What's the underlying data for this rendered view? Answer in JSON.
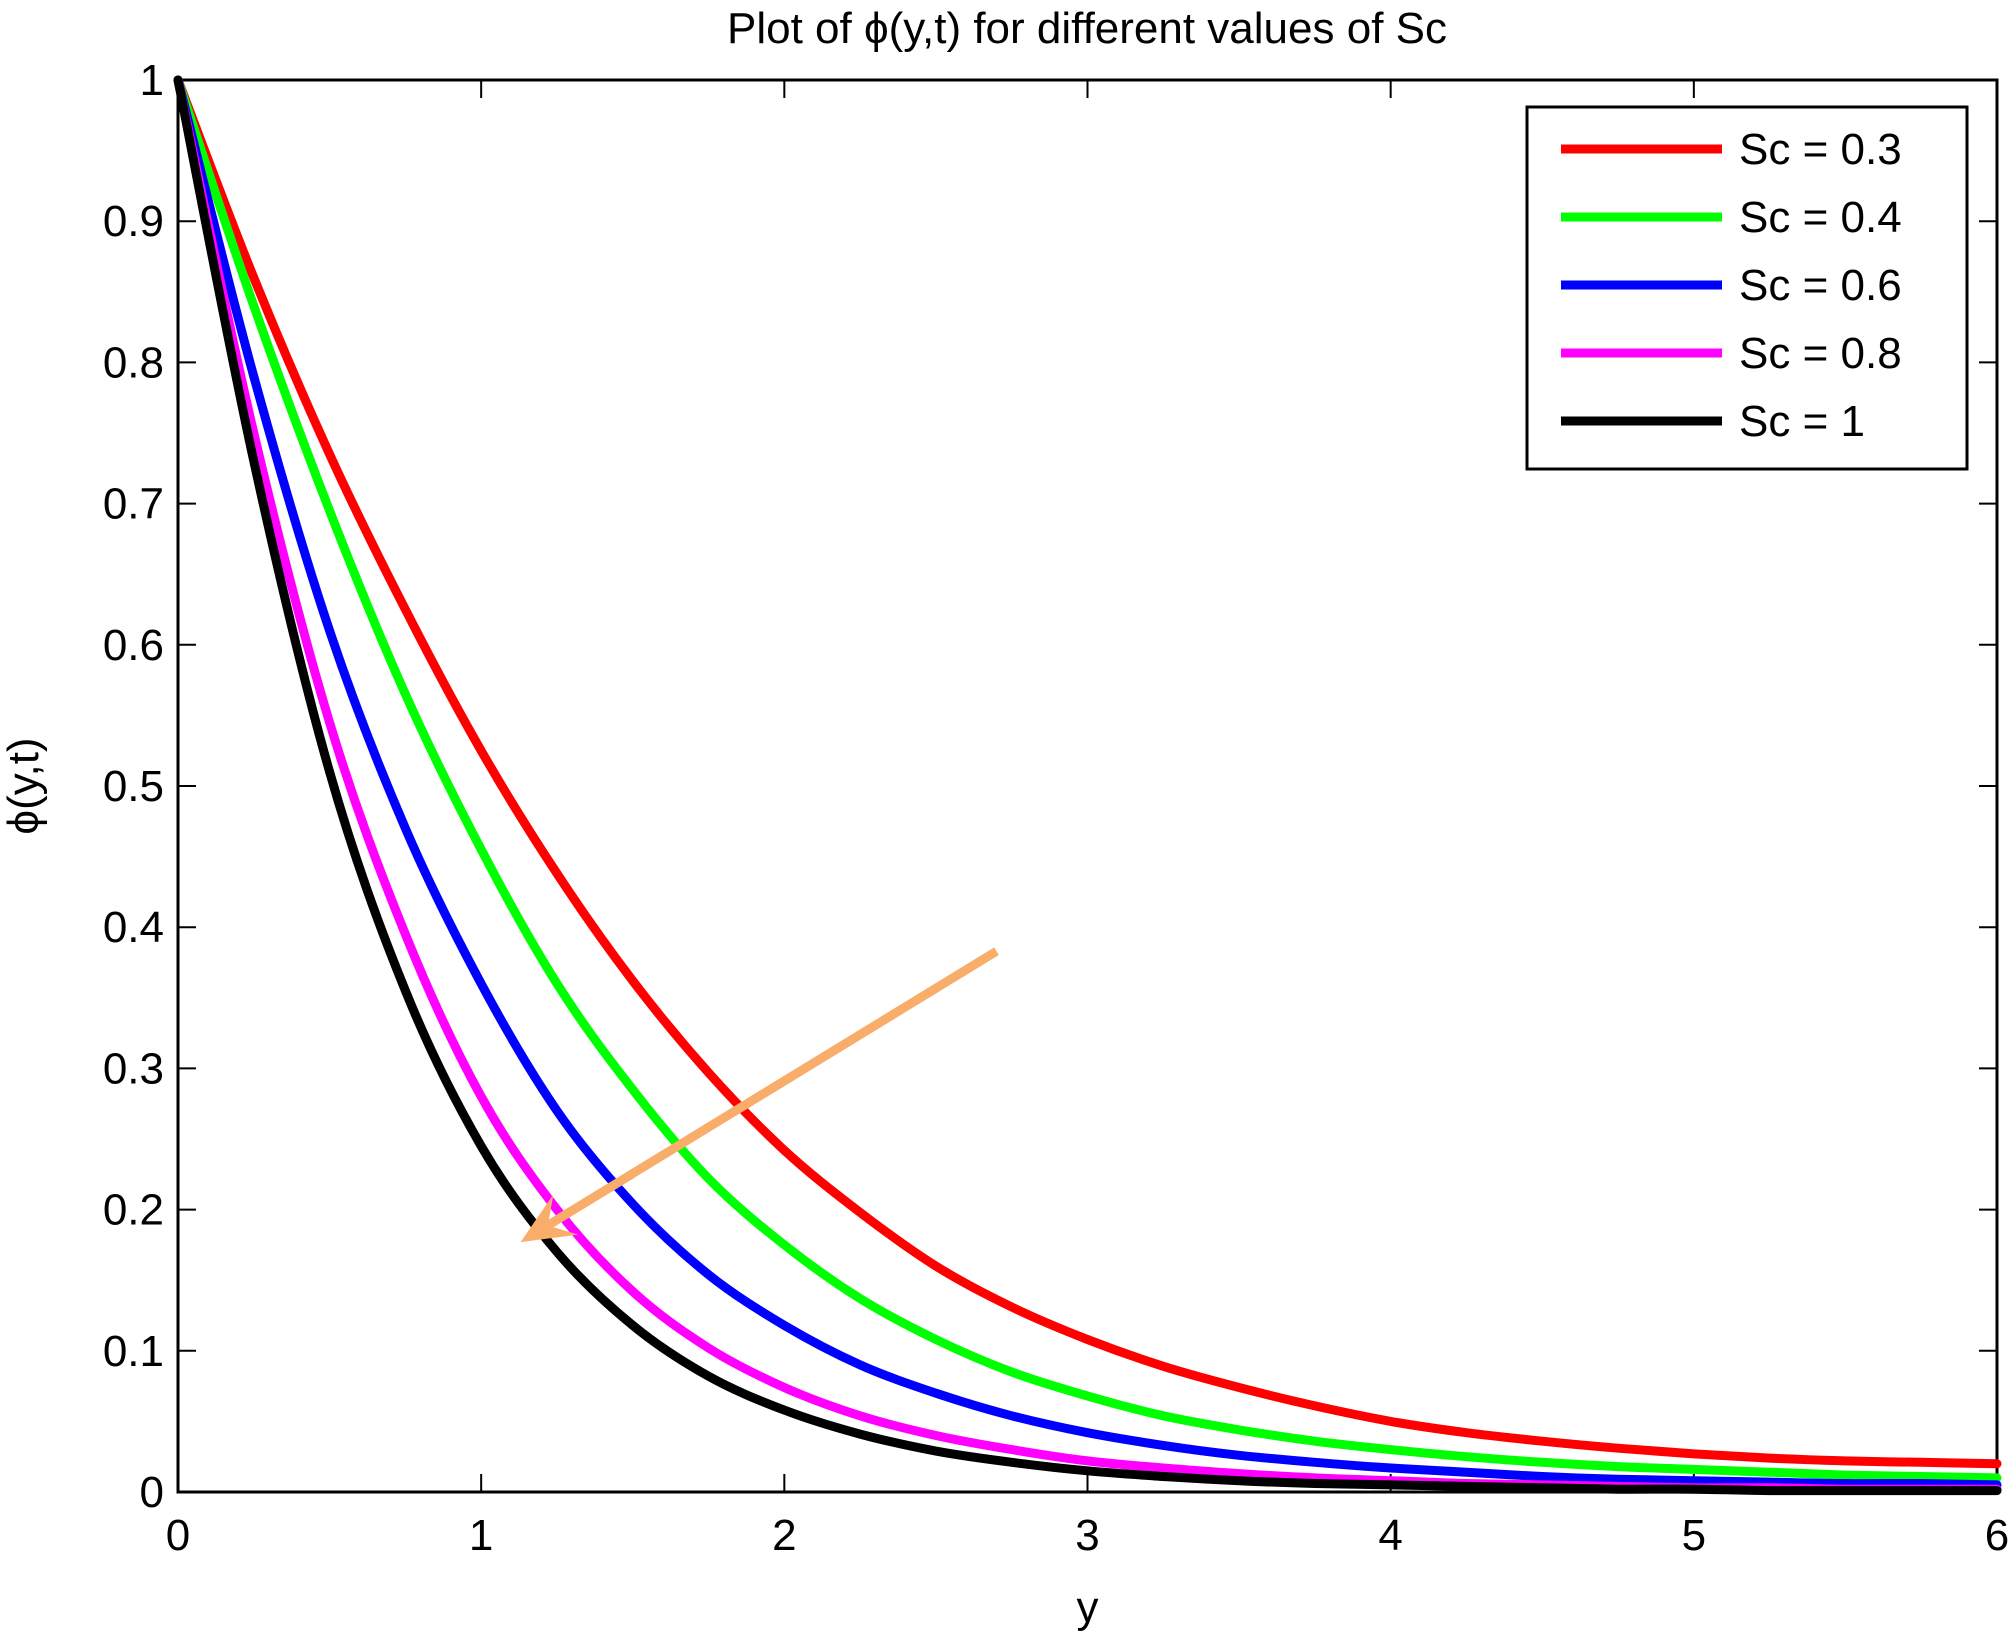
{
  "chart_data": {
    "type": "line",
    "title": "Plot of ϕ(y,t) for different values of Sc",
    "xlabel": "y",
    "ylabel": "ϕ(y,t)",
    "xlim": [
      0,
      6
    ],
    "ylim": [
      0,
      1
    ],
    "xticks": [
      "0",
      "1",
      "2",
      "3",
      "4",
      "5",
      "6"
    ],
    "yticks": [
      "0",
      "0.1",
      "0.2",
      "0.3",
      "0.4",
      "0.5",
      "0.6",
      "0.7",
      "0.8",
      "0.9",
      "1"
    ],
    "grid": false,
    "legend_position": "top-right",
    "x": [
      0,
      0.25,
      0.5,
      0.75,
      1.0,
      1.25,
      1.5,
      1.75,
      2.0,
      2.25,
      2.5,
      2.75,
      3.0,
      3.25,
      3.5,
      3.75,
      4.0,
      4.25,
      4.5,
      4.75,
      5.0,
      5.25,
      5.5,
      5.75,
      6.0
    ],
    "series": [
      {
        "name": "Sc = 0.3",
        "color": "#ff0000",
        "values": [
          1.0,
          0.86,
          0.735,
          0.625,
          0.525,
          0.438,
          0.362,
          0.297,
          0.242,
          0.198,
          0.16,
          0.131,
          0.108,
          0.089,
          0.074,
          0.061,
          0.05,
          0.042,
          0.036,
          0.031,
          0.027,
          0.024,
          0.022,
          0.021,
          0.02
        ]
      },
      {
        "name": "Sc = 0.4",
        "color": "#00ff00",
        "values": [
          1.0,
          0.84,
          0.695,
          0.565,
          0.455,
          0.36,
          0.285,
          0.222,
          0.175,
          0.137,
          0.108,
          0.085,
          0.068,
          0.054,
          0.044,
          0.036,
          0.03,
          0.025,
          0.021,
          0.018,
          0.016,
          0.014,
          0.012,
          0.011,
          0.01
        ]
      },
      {
        "name": "Sc = 0.6",
        "color": "#0000ff",
        "values": [
          1.0,
          0.79,
          0.61,
          0.47,
          0.36,
          0.27,
          0.204,
          0.154,
          0.118,
          0.09,
          0.07,
          0.054,
          0.042,
          0.033,
          0.026,
          0.021,
          0.017,
          0.014,
          0.011,
          0.009,
          0.008,
          0.007,
          0.006,
          0.006,
          0.005
        ]
      },
      {
        "name": "Sc = 0.8",
        "color": "#ff00ff",
        "values": [
          1.0,
          0.75,
          0.545,
          0.395,
          0.28,
          0.2,
          0.142,
          0.102,
          0.074,
          0.054,
          0.04,
          0.03,
          0.022,
          0.017,
          0.013,
          0.01,
          0.008,
          0.006,
          0.005,
          0.004,
          0.003,
          0.003,
          0.002,
          0.002,
          0.002
        ]
      },
      {
        "name": "Sc = 1",
        "color": "#000000",
        "values": [
          1.0,
          0.73,
          0.51,
          0.355,
          0.245,
          0.17,
          0.118,
          0.082,
          0.058,
          0.041,
          0.029,
          0.021,
          0.015,
          0.011,
          0.008,
          0.006,
          0.005,
          0.004,
          0.003,
          0.002,
          0.002,
          0.001,
          0.001,
          0.001,
          0.001
        ]
      }
    ],
    "annotations": [
      {
        "type": "arrow",
        "color": "#f9ad6a",
        "from": [
          2.7,
          0.383
        ],
        "to": [
          1.13,
          0.177
        ]
      }
    ]
  }
}
